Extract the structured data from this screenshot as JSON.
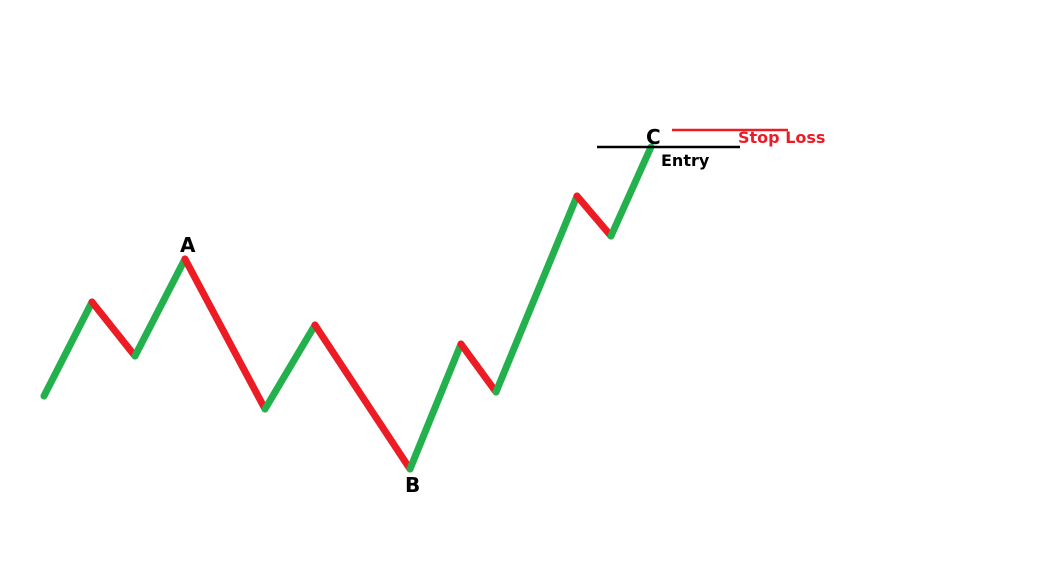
{
  "diagram": {
    "colors": {
      "up": "#22b14c",
      "down": "#ed1c24",
      "entry": "#000000",
      "stop": "#ed1c24",
      "text": "#000000"
    },
    "point_labels": {
      "a": "A",
      "b": "B",
      "c": "C"
    },
    "entry_label": "Entry",
    "stop_loss_label": "Stop Loss"
  }
}
